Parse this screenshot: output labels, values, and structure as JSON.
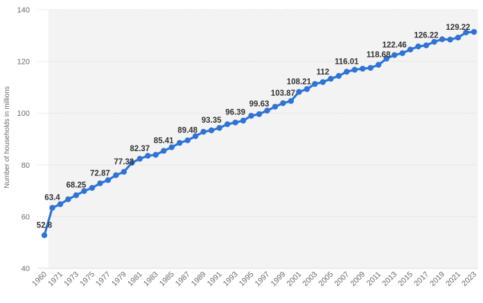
{
  "chart_data": {
    "type": "line",
    "title": "",
    "xlabel": "",
    "ylabel": "Number of households in millions",
    "ylim": [
      40,
      140
    ],
    "yticks": [
      40,
      60,
      80,
      100,
      120,
      140
    ],
    "grid": true,
    "x": [
      1960,
      1970,
      1971,
      1972,
      1973,
      1974,
      1975,
      1976,
      1977,
      1978,
      1979,
      1980,
      1981,
      1982,
      1983,
      1984,
      1985,
      1986,
      1987,
      1988,
      1989,
      1990,
      1991,
      1992,
      1993,
      1994,
      1995,
      1996,
      1997,
      1998,
      1999,
      2000,
      2001,
      2002,
      2003,
      2004,
      2005,
      2006,
      2007,
      2008,
      2009,
      2010,
      2011,
      2012,
      2013,
      2014,
      2015,
      2016,
      2017,
      2018,
      2019,
      2020,
      2021,
      2022,
      2023
    ],
    "x_tick_labels": [
      "1960",
      "1971",
      "1973",
      "1975",
      "1977",
      "1979",
      "1981",
      "1983",
      "1985",
      "1987",
      "1989",
      "1991",
      "1993",
      "1995",
      "1997",
      "1999",
      "2001",
      "2003",
      "2005",
      "2007",
      "2009",
      "2011",
      "2013",
      "2015",
      "2017",
      "2019",
      "2021",
      "2023"
    ],
    "series": [
      {
        "color": "#2f73d6",
        "values": [
          52.8,
          63.4,
          64.8,
          66.7,
          68.25,
          69.9,
          71.1,
          72.87,
          74.1,
          76.0,
          77.33,
          80.8,
          82.37,
          83.5,
          83.9,
          85.41,
          86.8,
          88.5,
          89.48,
          91.1,
          92.8,
          93.35,
          94.3,
          95.7,
          96.39,
          97.1,
          98.99,
          99.63,
          101.0,
          102.5,
          103.87,
          104.7,
          108.21,
          109.3,
          111.28,
          112.0,
          113.3,
          114.4,
          116.01,
          116.78,
          117.18,
          117.5,
          118.68,
          121.08,
          122.46,
          123.2,
          124.6,
          125.8,
          126.22,
          127.59,
          128.58,
          128.45,
          129.22,
          131.2,
          131.43
        ]
      }
    ],
    "data_labels": [
      {
        "x": 1960,
        "text": "52.8"
      },
      {
        "x": 1970,
        "text": "63.4"
      },
      {
        "x": 1973,
        "text": "68.25"
      },
      {
        "x": 1976,
        "text": "72.87"
      },
      {
        "x": 1979,
        "text": "77.33"
      },
      {
        "x": 1981,
        "text": "82.37"
      },
      {
        "x": 1984,
        "text": "85.41"
      },
      {
        "x": 1987,
        "text": "89.48"
      },
      {
        "x": 1990,
        "text": "93.35"
      },
      {
        "x": 1993,
        "text": "96.39"
      },
      {
        "x": 1996,
        "text": "99.63"
      },
      {
        "x": 1999,
        "text": "103.87"
      },
      {
        "x": 2001,
        "text": "108.21"
      },
      {
        "x": 2004,
        "text": "112"
      },
      {
        "x": 2007,
        "text": "116.01"
      },
      {
        "x": 2011,
        "text": "118.68"
      },
      {
        "x": 2013,
        "text": "122.46"
      },
      {
        "x": 2017,
        "text": "126.22"
      },
      {
        "x": 2021,
        "text": "129.22"
      }
    ]
  }
}
